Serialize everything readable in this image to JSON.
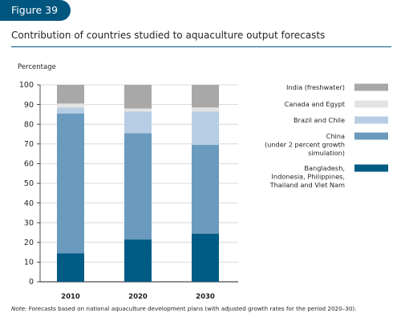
{
  "header": {
    "figure_label": "Figure 39",
    "title": "Contribution of countries studied to aquaculture output forecasts"
  },
  "note": {
    "prefix": "Note:",
    "text": " Forecasts based on national aquaculture development plans (with adjusted growth rates for the period 2020–30)."
  },
  "chart_data": {
    "type": "bar",
    "stacked": true,
    "title": "Contribution of countries studied to aquaculture output forecasts",
    "ylabel": "Percentage",
    "xlabel": "",
    "ylim": [
      0,
      100
    ],
    "yticks": [
      0,
      10,
      20,
      30,
      40,
      50,
      60,
      70,
      80,
      90,
      100
    ],
    "categories": [
      "2010",
      "2020",
      "2030"
    ],
    "legend_position": "right",
    "series": [
      {
        "name": "Bangladesh, Indonesia, Philippines, Thailand and Viet Nam",
        "color": "#005b85",
        "values": [
          14.5,
          21.5,
          24.5
        ]
      },
      {
        "name": "China (under 2 percent growth simulation)",
        "color": "#6a9bbf",
        "values": [
          71,
          54,
          45
        ]
      },
      {
        "name": "Brazil and Chile",
        "color": "#b7cde3",
        "values": [
          3,
          11,
          17
        ]
      },
      {
        "name": "Canada and Egypt",
        "color": "#e3e3e3",
        "values": [
          2,
          1.5,
          2
        ]
      },
      {
        "name": "India (freshwater)",
        "color": "#a8a8a8",
        "values": [
          9.5,
          12,
          11.5
        ]
      }
    ],
    "legend_entries": [
      {
        "lines": [
          "India (freshwater)"
        ],
        "color": "#a8a8a8"
      },
      {
        "lines": [
          "Canada and Egypt"
        ],
        "color": "#e3e3e3"
      },
      {
        "lines": [
          "Brazil and Chile"
        ],
        "color": "#b7cde3"
      },
      {
        "lines": [
          "China",
          "(under 2 percent growth",
          "simulation)"
        ],
        "color": "#6a9bbf"
      },
      {
        "lines": [
          "Bangladesh,",
          "Indonesia, Philippines,",
          "Thailand and Viet Nam"
        ],
        "color": "#005b85"
      }
    ]
  }
}
